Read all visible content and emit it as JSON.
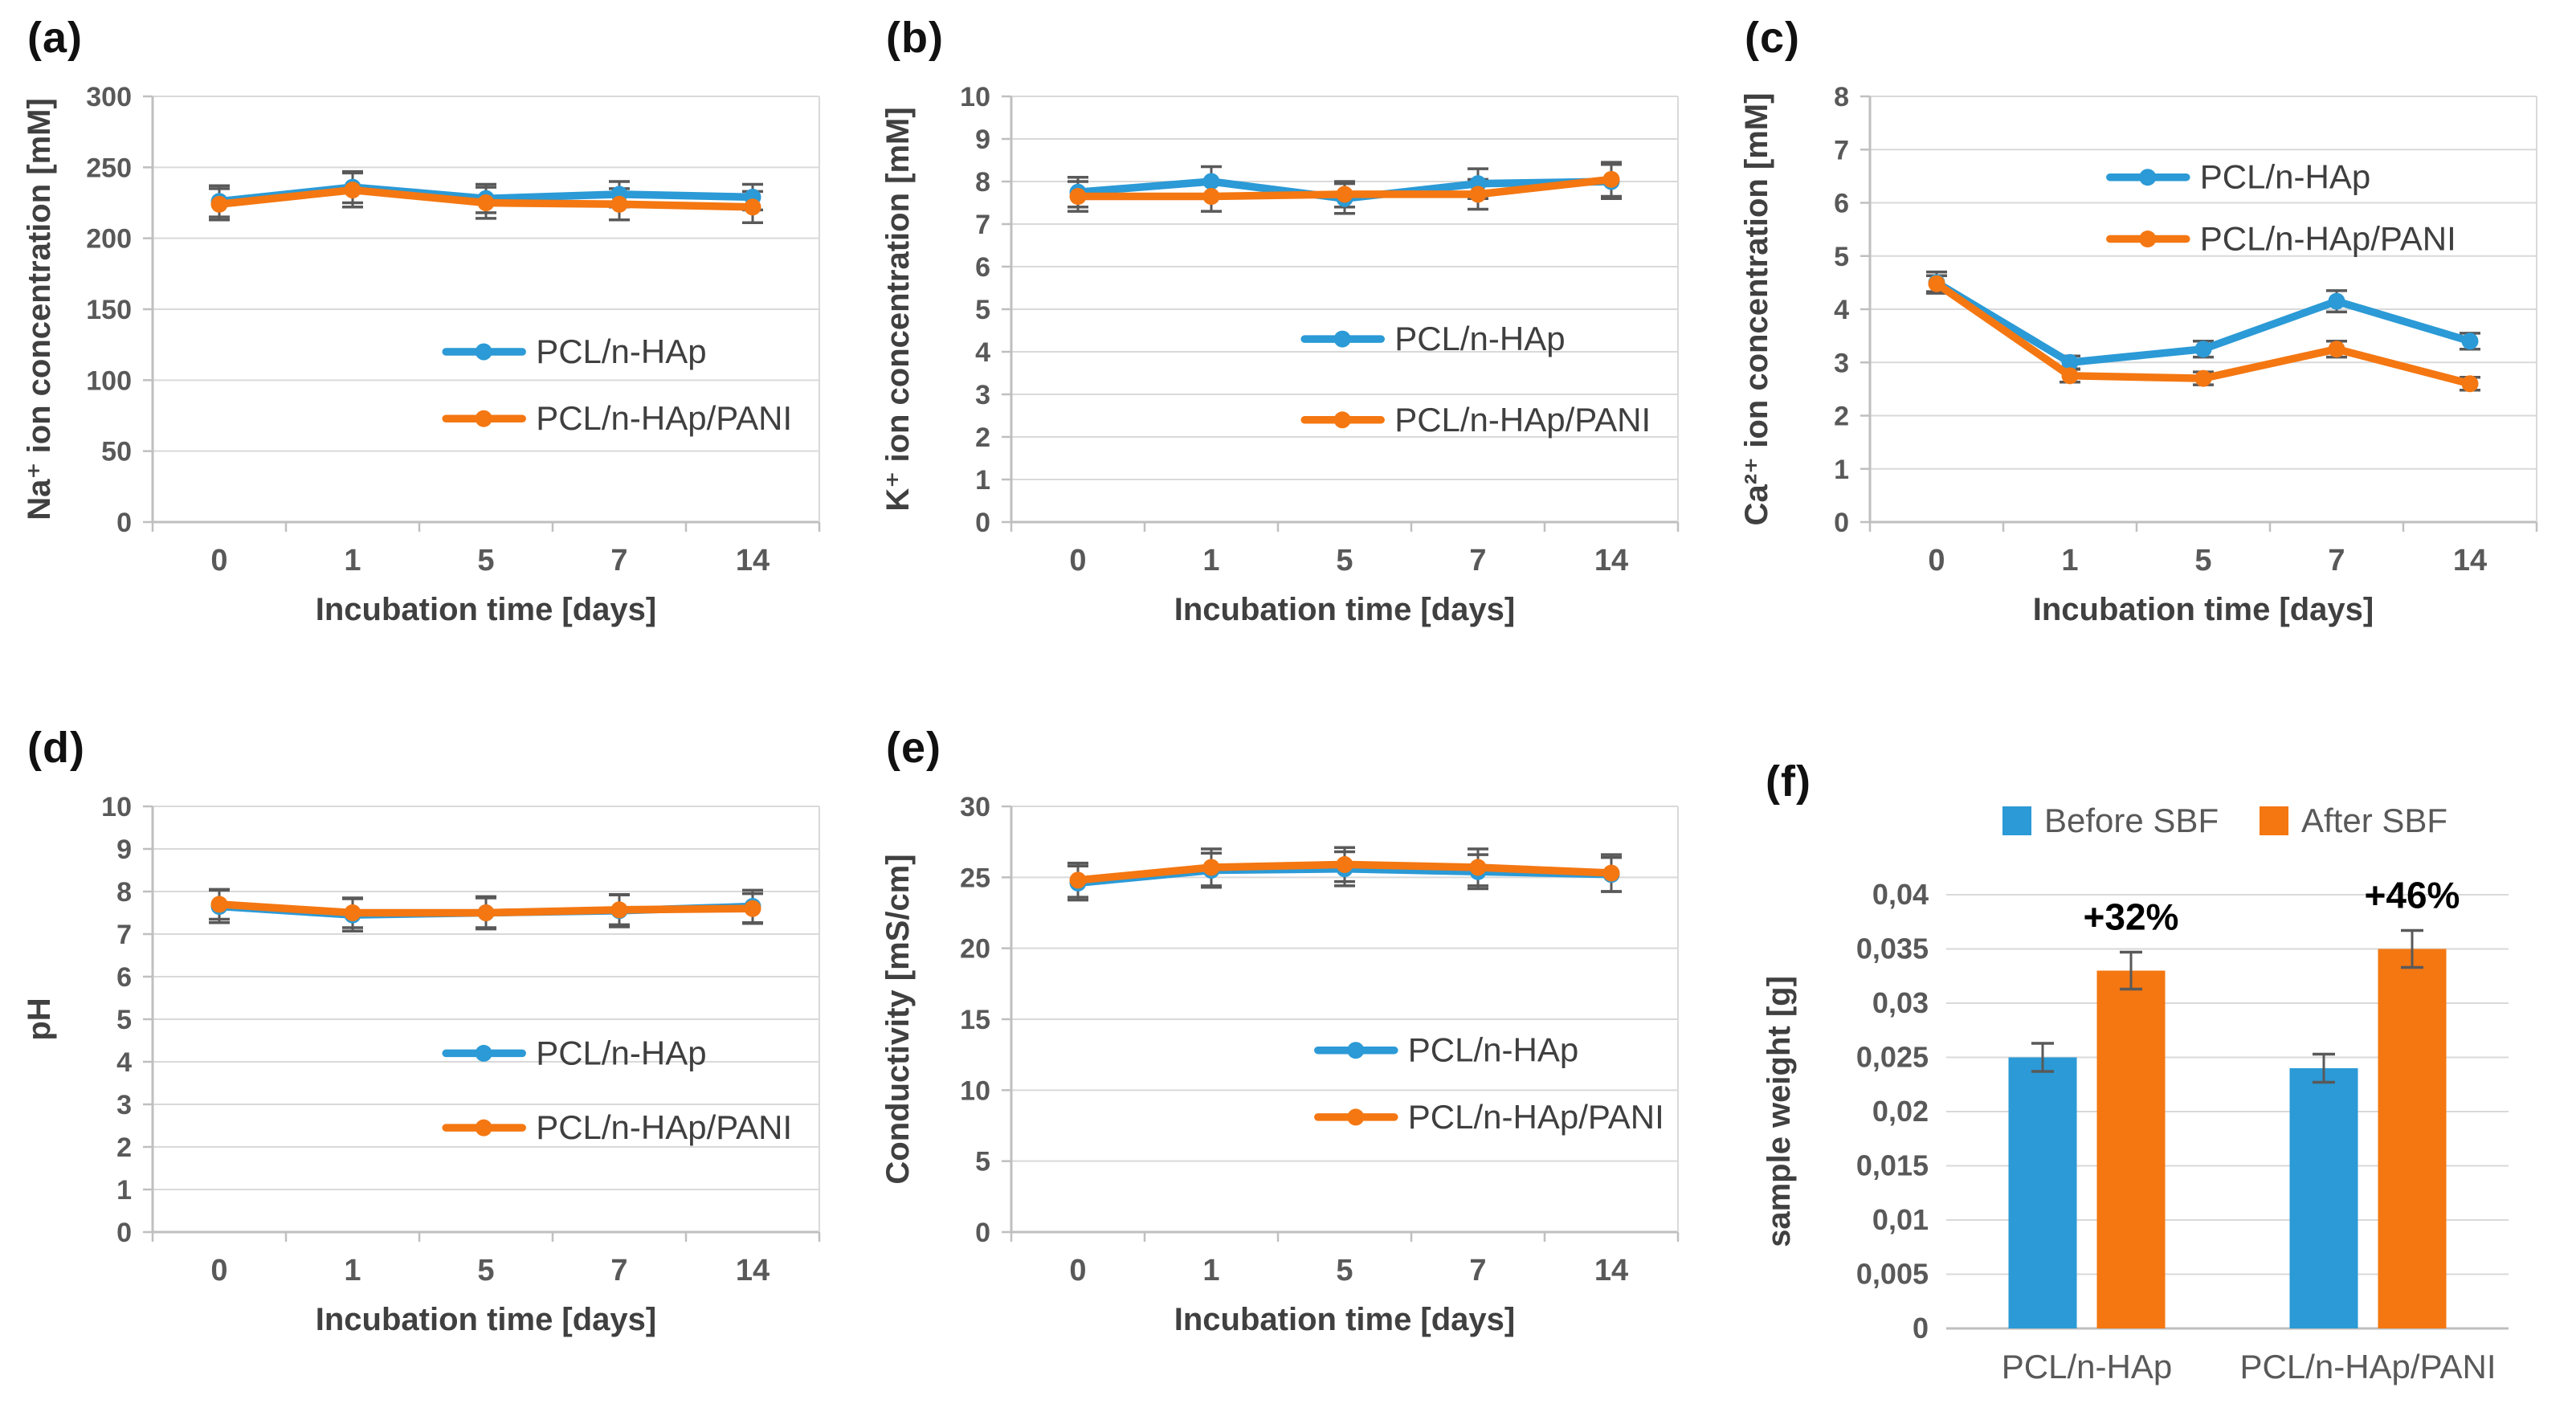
{
  "figure": {
    "background": "#ffffff"
  },
  "palette": {
    "blue": "#2B9AD6",
    "orange": "#F47712",
    "grid": "#D9D9D9",
    "axis": "#BFBFBF",
    "tick_text": "#595959",
    "title_text": "#404040",
    "legend_text": "#3F3F3F",
    "error_bar": "#595959",
    "annotation": "#000000"
  },
  "chart_data": [
    {
      "panel_label": "(a)",
      "type": "line",
      "xlabel": "Incubation time [days]",
      "ylabel": "Na⁺ ion concentration [mM]",
      "categories": [
        "0",
        "1",
        "5",
        "7",
        "14"
      ],
      "ylim": [
        0,
        300
      ],
      "ytick_step": 50,
      "grid": true,
      "legend": {
        "position": "inside",
        "fx": 0.44,
        "fy": [
          0.6,
          0.757
        ]
      },
      "series": [
        {
          "name": "PCL/n-HAp",
          "color_key": "blue",
          "values": [
            226,
            236,
            228,
            231,
            229
          ],
          "errors": [
            11,
            11,
            10,
            9,
            9
          ]
        },
        {
          "name": "PCL/n-HAp/PANI",
          "color_key": "orange",
          "values": [
            224,
            234,
            225,
            224,
            222
          ],
          "errors": [
            11,
            12,
            11,
            11,
            11
          ]
        }
      ]
    },
    {
      "panel_label": "(b)",
      "type": "line",
      "xlabel": "Incubation time [days]",
      "ylabel": "K⁺ ion concentration [mM]",
      "categories": [
        "0",
        "1",
        "5",
        "7",
        "14"
      ],
      "ylim": [
        0,
        10
      ],
      "ytick_step": 1,
      "grid": true,
      "legend": {
        "position": "inside",
        "fx": 0.44,
        "fy": [
          0.57,
          0.76
        ]
      },
      "series": [
        {
          "name": "PCL/n-HAp",
          "color_key": "blue",
          "values": [
            7.75,
            8.0,
            7.6,
            7.95,
            8.0
          ],
          "errors": [
            0.35,
            0.35,
            0.35,
            0.35,
            0.4
          ]
        },
        {
          "name": "PCL/n-HAp/PANI",
          "color_key": "orange",
          "values": [
            7.65,
            7.65,
            7.7,
            7.7,
            8.05
          ],
          "errors": [
            0.35,
            0.35,
            0.3,
            0.35,
            0.4
          ]
        }
      ]
    },
    {
      "panel_label": "(c)",
      "type": "line",
      "xlabel": "Incubation time [days]",
      "ylabel": "Ca²⁺ ion concentration [mM]",
      "categories": [
        "0",
        "1",
        "5",
        "7",
        "14"
      ],
      "ylim": [
        0,
        8
      ],
      "ytick_step": 1,
      "grid": true,
      "legend": {
        "position": "inside",
        "fx": 0.36,
        "fy": [
          0.19,
          0.335
        ]
      },
      "series": [
        {
          "name": "PCL/n-HAp",
          "color_key": "blue",
          "values": [
            4.5,
            3.0,
            3.25,
            4.15,
            3.4
          ],
          "errors": [
            0.2,
            0.12,
            0.15,
            0.2,
            0.15
          ]
        },
        {
          "name": "PCL/n-HAp/PANI",
          "color_key": "orange",
          "values": [
            4.48,
            2.75,
            2.7,
            3.25,
            2.6
          ],
          "errors": [
            0.15,
            0.12,
            0.12,
            0.15,
            0.12
          ]
        }
      ]
    },
    {
      "panel_label": "(d)",
      "type": "line",
      "xlabel": "Incubation time [days]",
      "ylabel": "pH",
      "categories": [
        "0",
        "1",
        "5",
        "7",
        "14"
      ],
      "ylim": [
        0,
        10
      ],
      "ytick_step": 1,
      "grid": true,
      "legend": {
        "position": "inside",
        "fx": 0.44,
        "fy": [
          0.58,
          0.755
        ]
      },
      "series": [
        {
          "name": "PCL/n-HAp",
          "color_key": "blue",
          "values": [
            7.65,
            7.45,
            7.5,
            7.55,
            7.65
          ],
          "errors": [
            0.38,
            0.38,
            0.38,
            0.38,
            0.38
          ]
        },
        {
          "name": "PCL/n-HAp/PANI",
          "color_key": "orange",
          "values": [
            7.7,
            7.5,
            7.5,
            7.57,
            7.6
          ],
          "errors": [
            0.35,
            0.35,
            0.35,
            0.35,
            0.35
          ]
        }
      ]
    },
    {
      "panel_label": "(e)",
      "type": "line",
      "xlabel": "Incubation time [days]",
      "ylabel": "Conductivity [mS/cm]",
      "categories": [
        "0",
        "1",
        "5",
        "7",
        "14"
      ],
      "ylim": [
        0,
        30
      ],
      "ytick_step": 5,
      "grid": true,
      "legend": {
        "position": "inside",
        "fx": 0.46,
        "fy": [
          0.573,
          0.73
        ]
      },
      "series": [
        {
          "name": "PCL/n-HAp",
          "color_key": "blue",
          "values": [
            24.6,
            25.5,
            25.6,
            25.4,
            25.2
          ],
          "errors": [
            1.2,
            1.2,
            1.2,
            1.2,
            1.2
          ]
        },
        {
          "name": "PCL/n-HAp/PANI",
          "color_key": "orange",
          "values": [
            24.8,
            25.7,
            25.9,
            25.7,
            25.3
          ],
          "errors": [
            1.2,
            1.3,
            1.2,
            1.3,
            1.3
          ]
        }
      ]
    },
    {
      "panel_label": "(f)",
      "type": "bar",
      "xlabel": "",
      "ylabel": "sample weight [g]",
      "categories": [
        "PCL/n-HAp",
        "PCL/n-HAp/PANI"
      ],
      "ylim": [
        0,
        0.04
      ],
      "ytick_step": 0.005,
      "ytick_labels": [
        "0",
        "0,005",
        "0,01",
        "0,015",
        "0,02",
        "0,025",
        "0,03",
        "0,035",
        "0,04"
      ],
      "grid": true,
      "legend": {
        "position": "top",
        "labels": [
          "Before SBF",
          "After SBF"
        ]
      },
      "series": [
        {
          "name": "Before SBF",
          "color_key": "blue",
          "values": [
            0.025,
            0.024
          ],
          "errors": [
            0.0013,
            0.0013
          ]
        },
        {
          "name": "After SBF",
          "color_key": "orange",
          "values": [
            0.033,
            0.035
          ],
          "errors": [
            0.0017,
            0.0017
          ]
        }
      ],
      "annotations": [
        {
          "text": "+32%",
          "group": 0
        },
        {
          "text": "+46%",
          "group": 1
        }
      ]
    }
  ]
}
